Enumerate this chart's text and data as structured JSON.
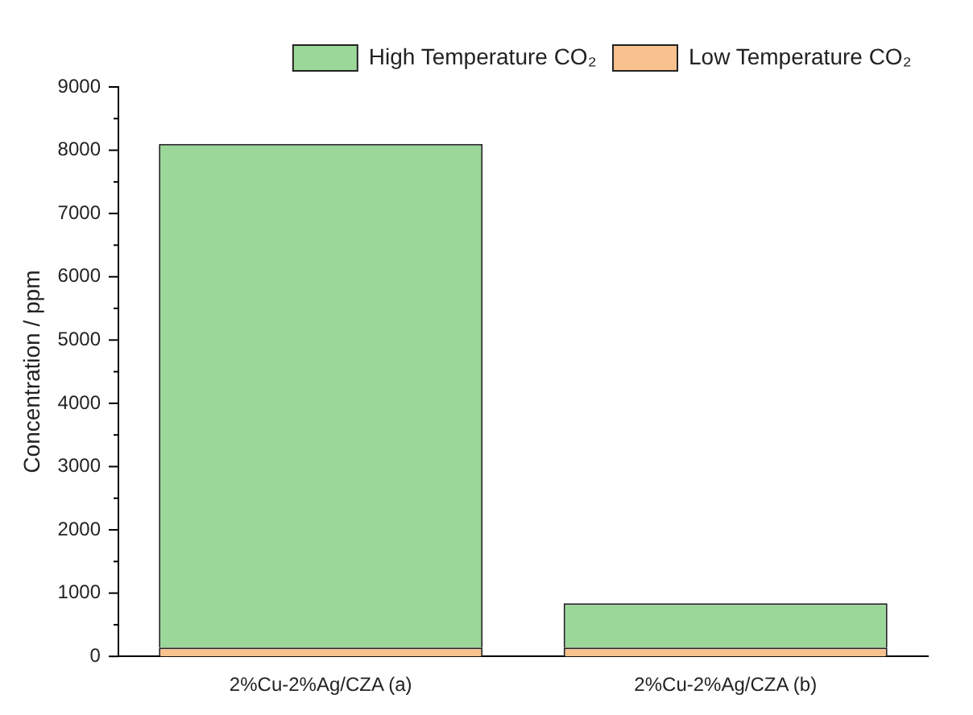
{
  "chart_data": {
    "type": "bar",
    "stacked": true,
    "ylabel": "Concentration / ppm",
    "categories": [
      "2%Cu-2%Ag/CZA (a)",
      "2%Cu-2%Ag/CZA (b)"
    ],
    "series": [
      {
        "name": "Low Temperature CO₂",
        "color": "#f7c28e",
        "values": [
          140,
          140
        ]
      },
      {
        "name": "High Temperature CO₂",
        "color": "#9cd79a",
        "values": [
          7960,
          700
        ]
      }
    ],
    "ylim": [
      0,
      9000
    ],
    "yticks": [
      0,
      {
        "value": 500,
        "label": null
      },
      1000,
      {
        "value": 1500,
        "label": null
      },
      2000,
      {
        "value": 2500,
        "label": null
      },
      3000,
      {
        "value": 3500,
        "label": null
      },
      4000,
      {
        "value": 4500,
        "label": null
      },
      5000,
      {
        "value": 5500,
        "label": null
      },
      6000,
      {
        "value": 6500,
        "label": null
      },
      7000,
      {
        "value": 7500,
        "label": null
      },
      8000,
      {
        "value": 8500,
        "label": null
      },
      9000
    ],
    "grid": false,
    "legend": "top right"
  }
}
